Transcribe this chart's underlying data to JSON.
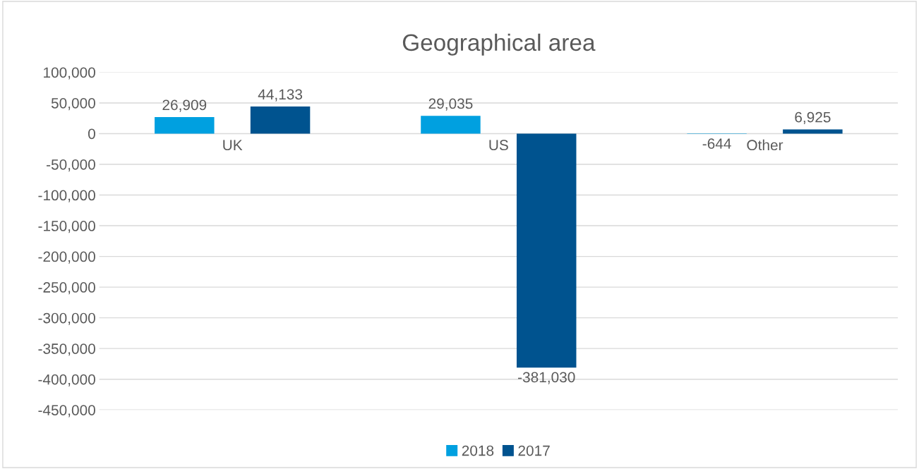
{
  "chart_data": {
    "type": "bar",
    "title": "Geographical area",
    "categories": [
      "UK",
      "US",
      "Other"
    ],
    "series": [
      {
        "name": "2018",
        "color": "#00a0e0",
        "values": [
          26909,
          29035,
          -644
        ],
        "value_labels": [
          "26,909",
          "29,035",
          "-644"
        ]
      },
      {
        "name": "2017",
        "color": "#00538f",
        "values": [
          44133,
          -381030,
          6925
        ],
        "value_labels": [
          "44,133",
          "-381,030",
          "6,925"
        ]
      }
    ],
    "ylim": [
      -450000,
      100000
    ],
    "yticks": [
      {
        "value": -450000,
        "label": "-450,000"
      },
      {
        "value": -400000,
        "label": "-400,000"
      },
      {
        "value": -350000,
        "label": "-350,000"
      },
      {
        "value": -300000,
        "label": "-300,000"
      },
      {
        "value": -250000,
        "label": "-250,000"
      },
      {
        "value": -200000,
        "label": "-200,000"
      },
      {
        "value": -150000,
        "label": "-150,000"
      },
      {
        "value": -100000,
        "label": "-100,000"
      },
      {
        "value": -50000,
        "label": "-50,000"
      },
      {
        "value": 0,
        "label": "0"
      },
      {
        "value": 50000,
        "label": "50,000"
      },
      {
        "value": 100000,
        "label": "100,000"
      }
    ],
    "grid": "y",
    "legend": "bottom"
  }
}
